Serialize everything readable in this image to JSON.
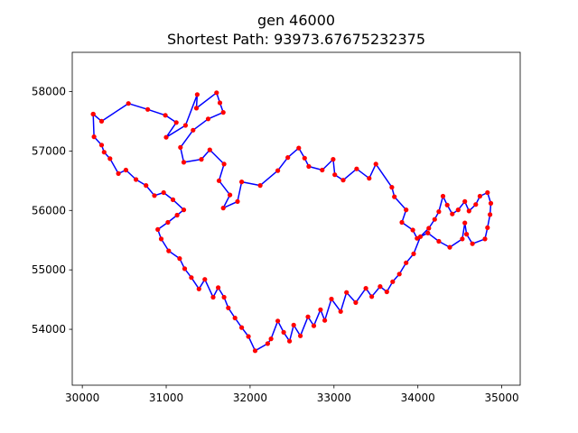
{
  "chart_data": {
    "type": "line",
    "title_lines": [
      "gen 46000",
      "Shortest Path: 93973.67675232375"
    ],
    "xlabel": "",
    "ylabel": "",
    "xlim": [
      29880,
      35220
    ],
    "ylim": [
      53060,
      58660
    ],
    "x_ticks": [
      30000,
      31000,
      32000,
      33000,
      34000,
      35000
    ],
    "x_tick_labels": [
      "30000",
      "31000",
      "32000",
      "33000",
      "34000",
      "35000"
    ],
    "y_ticks": [
      54000,
      55000,
      56000,
      57000,
      58000
    ],
    "y_tick_labels": [
      "54000",
      "55000",
      "56000",
      "57000",
      "58000"
    ],
    "grid": false,
    "line_color": "#0000ff",
    "marker_color": "#ff0000",
    "series": [
      {
        "x": [
          30130,
          30230,
          30550,
          30780,
          30990,
          31120,
          31000,
          31230,
          31370,
          31360,
          31600,
          31640,
          31680,
          31500,
          31320,
          31170,
          31210,
          31420,
          31520,
          31690,
          31630,
          31760,
          31680,
          31850,
          31900,
          32120,
          32330,
          32450,
          32580,
          32650,
          32700,
          32860,
          32990,
          33010,
          33110,
          33270,
          33420,
          33500,
          33690,
          33720,
          33860,
          33810,
          33940,
          33990,
          34120,
          34250,
          34380,
          34530,
          34560,
          34580,
          34650,
          34800,
          34830,
          34860,
          34870,
          34830,
          34740,
          34690,
          34610,
          34560,
          34480,
          34410,
          34350,
          34300,
          34250,
          34200,
          34130,
          34030,
          33950,
          33860,
          33780,
          33700,
          33630,
          33550,
          33450,
          33380,
          33260,
          33150,
          33080,
          32970,
          32890,
          32840,
          32760,
          32690,
          32600,
          32520,
          32470,
          32400,
          32330,
          32250,
          32210,
          32060,
          31980,
          31900,
          31820,
          31740,
          31690,
          31620,
          31560,
          31460,
          31390,
          31300,
          31220,
          31160,
          31030,
          30940,
          30900,
          31020,
          31130,
          31210,
          31080,
          30970,
          30860,
          30760,
          30640,
          30520,
          30430,
          30330,
          30260,
          30230,
          30140,
          30130
        ],
        "y": [
          57620,
          57500,
          57800,
          57700,
          57600,
          57480,
          57230,
          57430,
          57950,
          57720,
          57980,
          57810,
          57650,
          57540,
          57350,
          57060,
          56810,
          56860,
          57020,
          56780,
          56500,
          56260,
          56040,
          56150,
          56480,
          56420,
          56670,
          56890,
          57050,
          56880,
          56740,
          56680,
          56860,
          56600,
          56510,
          56700,
          56540,
          56780,
          56390,
          56230,
          56010,
          55800,
          55670,
          55530,
          55620,
          55480,
          55380,
          55520,
          55790,
          55600,
          55440,
          55520,
          55710,
          55930,
          56120,
          56300,
          56240,
          56100,
          55990,
          56150,
          56010,
          55940,
          56090,
          56240,
          55980,
          55850,
          55700,
          55560,
          55270,
          55120,
          54930,
          54800,
          54630,
          54720,
          54550,
          54690,
          54450,
          54620,
          54300,
          54510,
          54150,
          54330,
          54060,
          54210,
          53890,
          54070,
          53800,
          53950,
          54140,
          53840,
          53760,
          53640,
          53880,
          54030,
          54190,
          54360,
          54540,
          54700,
          54540,
          54840,
          54680,
          54870,
          55020,
          55190,
          55320,
          55520,
          55680,
          55800,
          55920,
          56010,
          56180,
          56300,
          56250,
          56420,
          56520,
          56680,
          56620,
          56870,
          56980,
          57100,
          57240,
          57620
        ]
      }
    ]
  }
}
